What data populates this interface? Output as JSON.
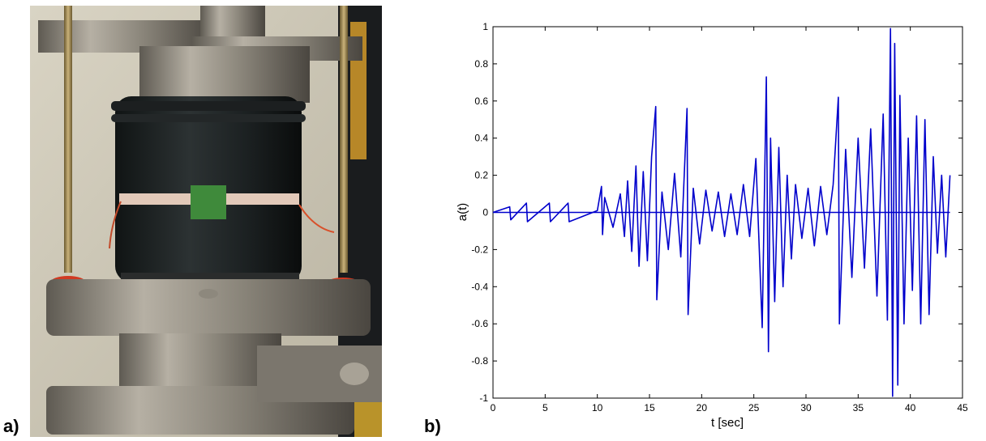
{
  "panels": {
    "a_label": "a)",
    "b_label": "b)"
  },
  "photo": {
    "icon": "triaxial-test-apparatus-photo"
  },
  "chart_data": {
    "type": "line",
    "title": "",
    "xlabel": "t [sec]",
    "ylabel": "a(t)",
    "xlim": [
      0,
      45
    ],
    "ylim": [
      -1,
      1
    ],
    "xticks": [
      0,
      5,
      10,
      15,
      20,
      25,
      30,
      35,
      40,
      45
    ],
    "yticks": [
      -1,
      -0.8,
      -0.6,
      -0.4,
      -0.2,
      0,
      0.2,
      0.4,
      0.6,
      0.8,
      1
    ],
    "xtick_labels": [
      "0",
      "5",
      "10",
      "15",
      "20",
      "25",
      "30",
      "35",
      "40",
      "45"
    ],
    "ytick_labels": [
      "-1",
      "-0.8",
      "-0.6",
      "-0.4",
      "-0.2",
      "0",
      "0.2",
      "0.4",
      "0.6",
      "0.8",
      "1"
    ],
    "grid": false,
    "line_color": "#0000cc",
    "x": [
      0,
      1.6,
      1.7,
      3.2,
      3.3,
      5.4,
      5.5,
      7.2,
      7.3,
      10.0,
      10.4,
      10.5,
      10.7,
      11.5,
      12.2,
      12.6,
      12.9,
      13.3,
      13.7,
      14.0,
      14.4,
      14.8,
      15.2,
      15.6,
      15.7,
      16.2,
      16.8,
      17.4,
      18.0,
      18.6,
      18.7,
      19.2,
      19.8,
      20.4,
      21.0,
      21.6,
      22.2,
      22.8,
      23.4,
      24.0,
      24.6,
      25.2,
      25.8,
      26.2,
      26.4,
      26.6,
      27.0,
      27.4,
      27.8,
      28.2,
      28.6,
      29.0,
      29.6,
      30.2,
      30.8,
      31.4,
      32.0,
      32.6,
      33.1,
      33.2,
      33.8,
      34.4,
      35.0,
      35.6,
      36.2,
      36.8,
      37.4,
      37.8,
      38.1,
      38.3,
      38.5,
      38.8,
      39.0,
      39.4,
      39.8,
      40.2,
      40.6,
      41.0,
      41.4,
      41.8,
      42.2,
      42.6,
      43.0,
      43.4,
      43.8
    ],
    "y": [
      0,
      0.03,
      -0.04,
      0.05,
      -0.05,
      0.05,
      -0.05,
      0.05,
      -0.05,
      0.01,
      0.14,
      -0.12,
      0.08,
      -0.08,
      0.1,
      -0.13,
      0.17,
      -0.21,
      0.25,
      -0.29,
      0.22,
      -0.26,
      0.3,
      0.57,
      -0.47,
      0.11,
      -0.2,
      0.21,
      -0.24,
      0.56,
      -0.55,
      0.13,
      -0.17,
      0.12,
      -0.1,
      0.11,
      -0.13,
      0.1,
      -0.12,
      0.15,
      -0.13,
      0.29,
      -0.62,
      0.73,
      -0.75,
      0.4,
      -0.48,
      0.35,
      -0.4,
      0.2,
      -0.25,
      0.15,
      -0.14,
      0.13,
      -0.18,
      0.14,
      -0.12,
      0.15,
      0.62,
      -0.6,
      0.34,
      -0.35,
      0.4,
      -0.3,
      0.45,
      -0.45,
      0.53,
      -0.58,
      0.99,
      -0.99,
      0.91,
      -0.93,
      0.63,
      -0.6,
      0.4,
      -0.42,
      0.52,
      -0.6,
      0.5,
      -0.55,
      0.3,
      -0.22,
      0.2,
      -0.24,
      0.2
    ]
  }
}
